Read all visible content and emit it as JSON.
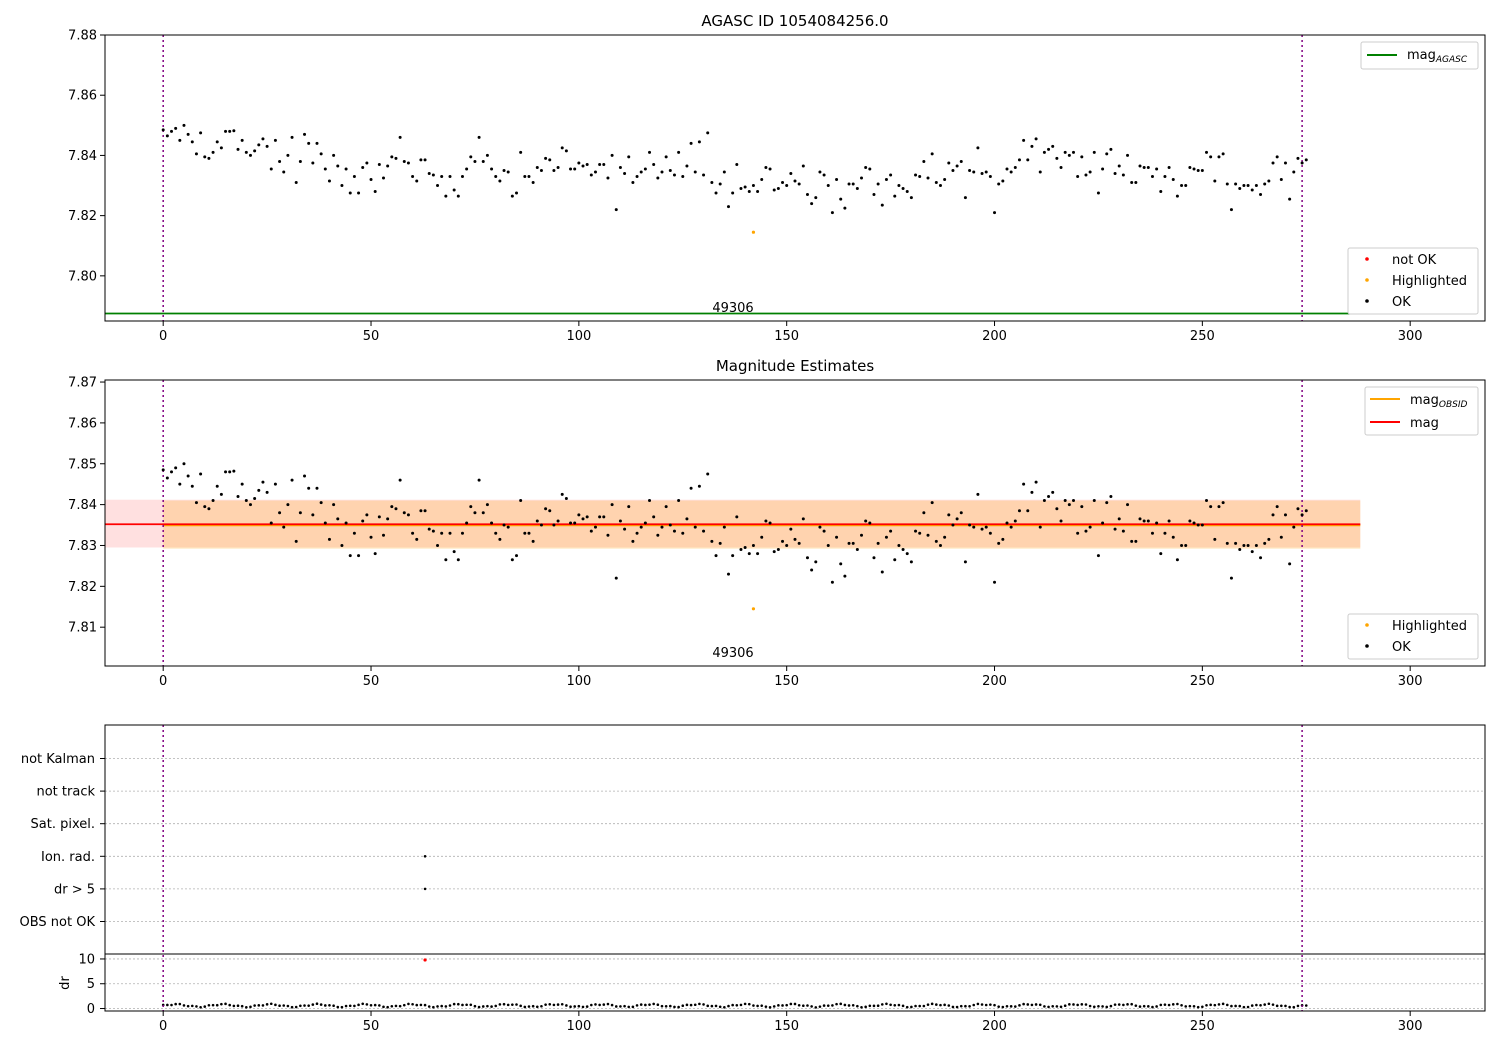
{
  "chart_data": [
    {
      "type": "scatter",
      "title": "AGASC ID 1054084256.0",
      "xlim": [
        -14,
        318
      ],
      "ylim": [
        7.785,
        7.88
      ],
      "xticks": [
        "0",
        "50",
        "100",
        "150",
        "200",
        "250",
        "300"
      ],
      "yticks": [
        "7.80",
        "7.82",
        "7.84",
        "7.86",
        "7.88"
      ],
      "annotation": "49306",
      "vlines_x": [
        0,
        274
      ],
      "lines": [
        {
          "name": "mag_AGASC_display",
          "label_main": "mag",
          "label_sub": "AGASC",
          "y": 7.7875,
          "x": [
            -14,
            288
          ],
          "color": "#008000"
        }
      ],
      "scatter_legend": [
        {
          "name": "not OK",
          "color": "#ff0000"
        },
        {
          "name": "Highlighted",
          "color": "#ffa500"
        },
        {
          "name": "OK",
          "color": "#000000"
        }
      ],
      "highlighted": [
        {
          "x": 142,
          "y": 7.8145
        }
      ],
      "ok_series": {
        "y": [
          7.8485,
          7.8465,
          7.848,
          7.849,
          7.845,
          7.85,
          7.847,
          7.8445,
          7.8405,
          7.8475,
          7.8395,
          7.839,
          7.841,
          7.8445,
          7.8425,
          7.848,
          7.848,
          7.8482,
          7.842,
          7.845,
          7.841,
          7.84,
          7.8415,
          7.8435,
          7.8455,
          7.843,
          7.8355,
          7.845,
          7.838,
          7.8345,
          7.84,
          7.846,
          7.831,
          7.838,
          7.847,
          7.844,
          7.8375,
          7.844,
          7.8405,
          7.8355,
          7.8315,
          7.84,
          7.8365,
          7.83,
          7.8355,
          7.8275,
          7.833,
          7.8275,
          7.836,
          7.8375,
          7.832,
          7.828,
          7.837,
          7.8325,
          7.8365,
          7.8395,
          7.839,
          7.846,
          7.838,
          7.8375,
          7.833,
          7.8315,
          7.8385,
          7.8385,
          7.834,
          7.8335,
          7.83,
          7.833,
          7.8265,
          7.833,
          7.8285,
          7.8265,
          7.833,
          7.8355,
          7.8395,
          7.838,
          7.846,
          7.838,
          7.84,
          7.8355,
          7.833,
          7.8315,
          7.835,
          7.8345,
          7.8265,
          7.8275,
          7.841,
          7.833,
          7.833,
          7.831,
          7.836,
          7.835,
          7.839,
          7.8385,
          7.835,
          7.836,
          7.8425,
          7.8415,
          7.8355,
          7.8355,
          7.8375,
          7.8365,
          7.837,
          7.8335,
          7.8345,
          7.837,
          7.837,
          7.8325,
          7.84,
          7.822,
          7.836,
          7.834,
          7.8395,
          7.831,
          7.833,
          7.8345,
          7.8355,
          7.841,
          7.837,
          7.8325,
          7.8345,
          7.8395,
          7.835,
          7.8335,
          7.841,
          7.833,
          7.8365,
          7.844,
          7.8345,
          7.8445,
          7.8335,
          7.8475,
          7.831,
          7.8275,
          7.8305,
          7.8345,
          7.823,
          7.8275,
          7.837,
          7.829,
          7.8295,
          7.828,
          7.83,
          7.828,
          7.832,
          7.836,
          7.8355,
          7.8285,
          7.829,
          7.831,
          7.83,
          7.834,
          7.8315,
          7.8305,
          7.8365,
          7.827,
          7.824,
          7.826,
          7.8345,
          7.8335,
          7.83,
          7.821,
          7.832,
          7.8255,
          7.8225,
          7.8305,
          7.8305,
          7.829,
          7.8325,
          7.836,
          7.8355,
          7.827,
          7.8305,
          7.8235,
          7.832,
          7.8335,
          7.8265,
          7.83,
          7.829,
          7.828,
          7.826,
          7.8335,
          7.833,
          7.838,
          7.8325,
          7.8405,
          7.831,
          7.83,
          7.832,
          7.8375,
          7.835,
          7.8365,
          7.838,
          7.826,
          7.835,
          7.8345,
          7.8425,
          7.834,
          7.8345,
          7.833,
          7.821,
          7.8305,
          7.8315,
          7.8355,
          7.8345,
          7.836,
          7.8385,
          7.845,
          7.8385,
          7.843,
          7.8455,
          7.8345,
          7.841,
          7.842,
          7.843,
          7.839,
          7.836,
          7.841,
          7.84,
          7.841,
          7.833,
          7.8395,
          7.8335,
          7.8345,
          7.841,
          7.8275,
          7.8355,
          7.8405,
          7.842,
          7.834,
          7.8365,
          7.8335,
          7.84,
          7.831,
          7.831,
          7.8365,
          7.836,
          7.836,
          7.833,
          7.8355,
          7.828,
          7.833,
          7.836,
          7.832,
          7.8265,
          7.83,
          7.83,
          7.836,
          7.8355,
          7.835,
          7.835,
          7.841,
          7.8395,
          7.8315,
          7.8395,
          7.8405,
          7.8305,
          7.822,
          7.8305,
          7.829,
          7.83,
          7.83,
          7.8285,
          7.83,
          7.827,
          7.8305,
          7.8315,
          7.8375,
          7.8395,
          7.832,
          7.8375,
          7.8255,
          7.8345,
          7.839,
          7.8375,
          7.8385
        ]
      }
    },
    {
      "type": "scatter",
      "title": "Magnitude Estimates",
      "xlim": [
        -14,
        318
      ],
      "ylim": [
        7.8005,
        7.8705
      ],
      "xticks": [
        "0",
        "50",
        "100",
        "150",
        "200",
        "250",
        "300"
      ],
      "yticks": [
        "7.81",
        "7.82",
        "7.83",
        "7.84",
        "7.85",
        "7.86",
        "7.87"
      ],
      "annotation": "49306",
      "vlines_x": [
        0,
        274
      ],
      "mag_band": {
        "y": 7.8352,
        "low": 7.8295,
        "high": 7.8412,
        "x": [
          -14,
          288
        ],
        "color": "#ff0000"
      },
      "obsid_band": {
        "y": 7.835,
        "low": 7.8292,
        "high": 7.841,
        "x": [
          0,
          288
        ],
        "color": "#ffa500"
      },
      "lines_legend": [
        {
          "name": "mag_OBSID",
          "label_main": "mag",
          "label_sub": "OBSID",
          "color": "#ffa500"
        },
        {
          "name": "mag",
          "label_main": "mag",
          "label_sub": "",
          "color": "#ff0000"
        }
      ],
      "scatter_legend": [
        {
          "name": "Highlighted",
          "color": "#ffa500"
        },
        {
          "name": "OK",
          "color": "#000000"
        }
      ],
      "highlighted": [
        {
          "x": 142,
          "y": 7.8145
        }
      ]
    },
    {
      "type": "scatter",
      "xlim": [
        -14,
        318
      ],
      "xticks": [
        "0",
        "50",
        "100",
        "150",
        "200",
        "250",
        "300"
      ],
      "flag_rows": [
        "OBS not OK",
        "dr > 5",
        "Ion. rad.",
        "Sat. pixel.",
        "not track",
        "not Kalman"
      ],
      "flag_points": [
        {
          "row": "dr > 5",
          "x": 63
        },
        {
          "row": "Ion. rad.",
          "x": 63
        }
      ],
      "vlines_x": [
        0,
        274
      ],
      "dr": {
        "ylabel": "dr",
        "ylim": [
          -0.5,
          11
        ],
        "yticks": [
          "0",
          "5",
          "10"
        ],
        "outlier": {
          "x": 63,
          "y": 9.8
        },
        "baseline": 0.6
      }
    }
  ]
}
